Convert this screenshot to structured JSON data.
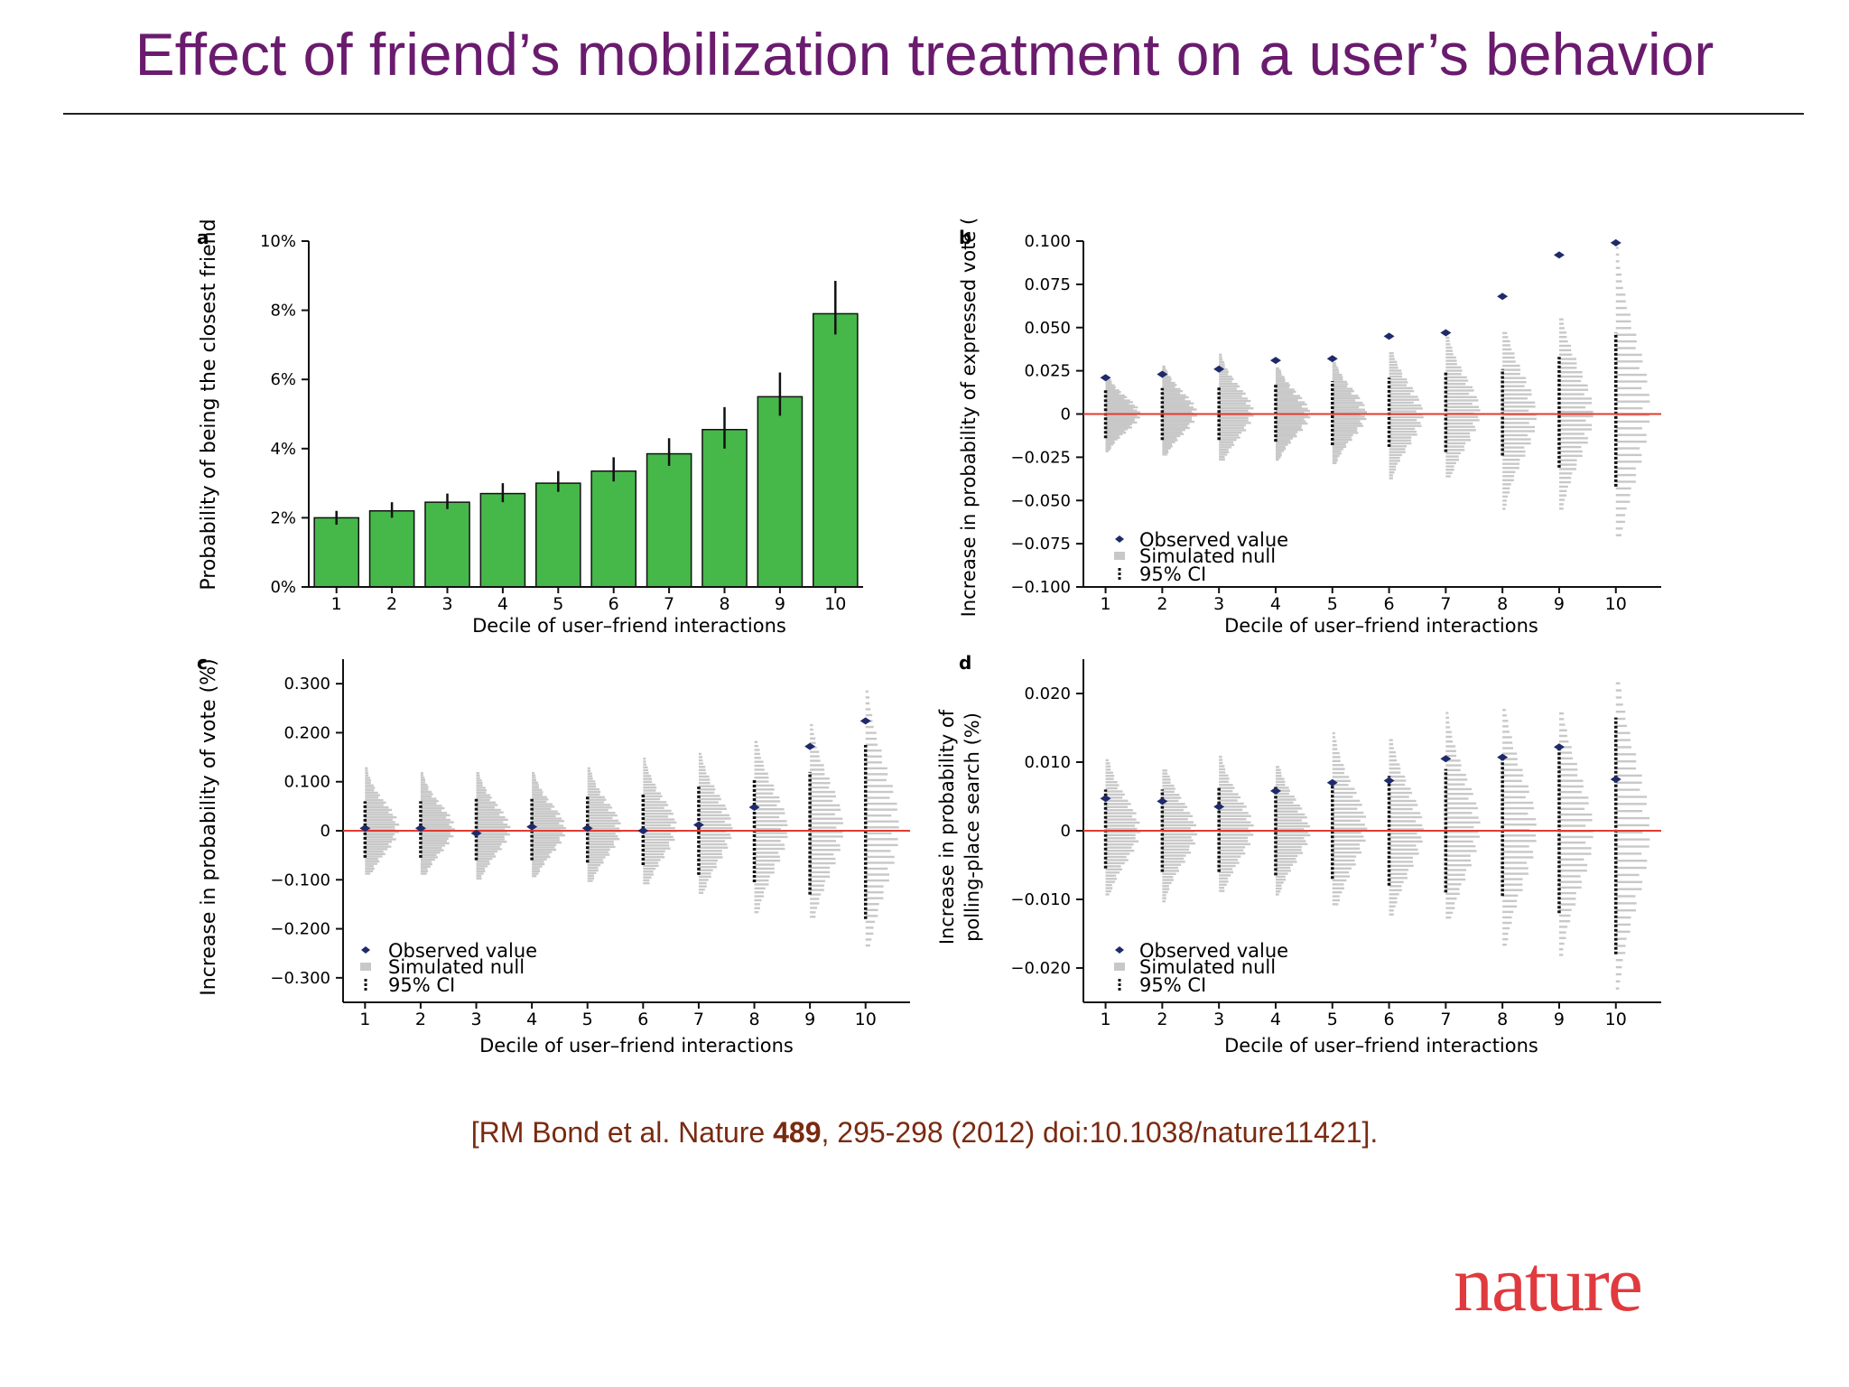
{
  "slide": {
    "title": "Effect of friend’s mobilization treatment on a user’s behavior",
    "citation_prefix": "[RM Bond et al. Nature ",
    "citation_volume": "489",
    "citation_suffix": ", 295-298 (2012) doi:10.1038/nature11421].",
    "logo_text": "nature"
  },
  "colors": {
    "title": "#6a1b6e",
    "bar_fill": "#46b84a",
    "observed": "#1f2a6b",
    "null_fill": "#c8c8c8",
    "ci": "#111111",
    "zero_line": "#e23b30",
    "citation": "#7a2a10",
    "logo": "#e03a3e"
  },
  "chart_data": [
    {
      "id": "a",
      "panel_label": "a",
      "type": "bar",
      "ylabel": "Probability of being the closest friend",
      "xlabel": "Decile of user–friend interactions",
      "categories": [
        "1",
        "2",
        "3",
        "4",
        "5",
        "6",
        "7",
        "8",
        "9",
        "10"
      ],
      "ylim": [
        0,
        10
      ],
      "yticks": [
        0,
        2,
        4,
        6,
        8,
        10
      ],
      "ytick_labels": [
        "0%",
        "2%",
        "4%",
        "6%",
        "8%",
        "10%"
      ],
      "values": [
        2.0,
        2.2,
        2.45,
        2.7,
        3.0,
        3.35,
        3.85,
        4.55,
        5.5,
        7.9
      ],
      "err_low": [
        1.8,
        2.0,
        2.25,
        2.45,
        2.75,
        3.05,
        3.5,
        4.0,
        4.95,
        7.3
      ],
      "err_high": [
        2.2,
        2.45,
        2.7,
        3.0,
        3.35,
        3.75,
        4.3,
        5.2,
        6.2,
        8.85
      ],
      "grid": false
    },
    {
      "id": "b",
      "panel_label": "b",
      "type": "scatter",
      "ylabel": "Increase in probability of expressed vote (%)",
      "xlabel": "Decile of user–friend interactions",
      "categories": [
        "1",
        "2",
        "3",
        "4",
        "5",
        "6",
        "7",
        "8",
        "9",
        "10"
      ],
      "ylim": [
        -0.1,
        0.1
      ],
      "yticks": [
        -0.1,
        -0.075,
        -0.05,
        -0.025,
        0,
        0.025,
        0.05,
        0.075,
        0.1
      ],
      "ytick_labels": [
        "−0.100",
        "−0.075",
        "−0.050",
        "−0.025",
        "0",
        "0.025",
        "0.050",
        "0.075",
        "0.100"
      ],
      "observed": [
        0.021,
        0.023,
        0.026,
        0.031,
        0.032,
        0.045,
        0.047,
        0.068,
        0.092,
        0.099
      ],
      "ci_low": [
        -0.014,
        -0.015,
        -0.015,
        -0.016,
        -0.018,
        -0.019,
        -0.022,
        -0.024,
        -0.031,
        -0.042
      ],
      "ci_high": [
        0.014,
        0.015,
        0.016,
        0.017,
        0.019,
        0.021,
        0.025,
        0.026,
        0.033,
        0.047
      ],
      "null_min": [
        -0.022,
        -0.024,
        -0.027,
        -0.027,
        -0.029,
        -0.038,
        -0.037,
        -0.056,
        -0.056,
        -0.072
      ],
      "null_max": [
        0.021,
        0.028,
        0.035,
        0.027,
        0.03,
        0.036,
        0.047,
        0.048,
        0.056,
        0.098
      ],
      "legend": {
        "observed": "Observed value",
        "null": "Simulated null",
        "ci": "95% CI",
        "position": "bottom-left"
      },
      "grid": false
    },
    {
      "id": "c",
      "panel_label": "c",
      "type": "scatter",
      "ylabel": "Increase in probability of vote (%)",
      "xlabel": "Decile of user–friend interactions",
      "categories": [
        "1",
        "2",
        "3",
        "4",
        "5",
        "6",
        "7",
        "8",
        "9",
        "10"
      ],
      "ylim": [
        -0.35,
        0.35
      ],
      "yticks": [
        -0.3,
        -0.2,
        -0.1,
        0,
        0.1,
        0.2,
        0.3
      ],
      "ytick_labels": [
        "−0.300",
        "−0.200",
        "−0.100",
        "0",
        "0.100",
        "0.200",
        "0.300"
      ],
      "observed": [
        0.005,
        0.005,
        -0.005,
        0.008,
        0.005,
        0.0,
        0.012,
        0.048,
        0.172,
        0.224
      ],
      "ci_low": [
        -0.055,
        -0.055,
        -0.06,
        -0.06,
        -0.065,
        -0.07,
        -0.09,
        -0.105,
        -0.13,
        -0.18
      ],
      "ci_high": [
        0.06,
        0.06,
        0.065,
        0.065,
        0.07,
        0.075,
        0.09,
        0.105,
        0.12,
        0.175
      ],
      "null_min": [
        -0.09,
        -0.09,
        -0.1,
        -0.095,
        -0.105,
        -0.11,
        -0.13,
        -0.17,
        -0.18,
        -0.24
      ],
      "null_max": [
        0.13,
        0.12,
        0.12,
        0.12,
        0.13,
        0.15,
        0.16,
        0.185,
        0.22,
        0.29
      ],
      "legend": {
        "observed": "Observed value",
        "null": "Simulated null",
        "ci": "95% CI",
        "position": "bottom-left"
      },
      "grid": false
    },
    {
      "id": "d",
      "panel_label": "d",
      "type": "scatter",
      "ylabel_line1": "Increase in probability of",
      "ylabel_line2": "polling-place search (%)",
      "xlabel": "Decile of user–friend interactions",
      "categories": [
        "1",
        "2",
        "3",
        "4",
        "5",
        "6",
        "7",
        "8",
        "9",
        "10"
      ],
      "ylim": [
        -0.025,
        0.025
      ],
      "yticks": [
        -0.02,
        -0.01,
        0,
        0.01,
        0.02
      ],
      "ytick_labels": [
        "−0.020",
        "−0.010",
        "0",
        "0.010",
        "0.020"
      ],
      "observed": [
        0.0047,
        0.0043,
        0.0035,
        0.0058,
        0.007,
        0.0073,
        0.0105,
        0.0107,
        0.0122,
        0.0075
      ],
      "ci_low": [
        -0.0055,
        -0.006,
        -0.006,
        -0.0065,
        -0.007,
        -0.008,
        -0.009,
        -0.0095,
        -0.012,
        -0.018
      ],
      "ci_high": [
        0.006,
        0.006,
        0.0065,
        0.0065,
        0.0072,
        0.008,
        0.009,
        0.0105,
        0.0125,
        0.0165
      ],
      "null_min": [
        -0.0095,
        -0.0105,
        -0.009,
        -0.0095,
        -0.011,
        -0.0125,
        -0.013,
        -0.017,
        -0.0185,
        -0.0235
      ],
      "null_max": [
        0.0105,
        0.009,
        0.011,
        0.0095,
        0.0145,
        0.0135,
        0.0175,
        0.018,
        0.0175,
        0.022
      ],
      "legend": {
        "observed": "Observed value",
        "null": "Simulated null",
        "ci": "95% CI",
        "position": "bottom-left"
      },
      "grid": false
    }
  ]
}
